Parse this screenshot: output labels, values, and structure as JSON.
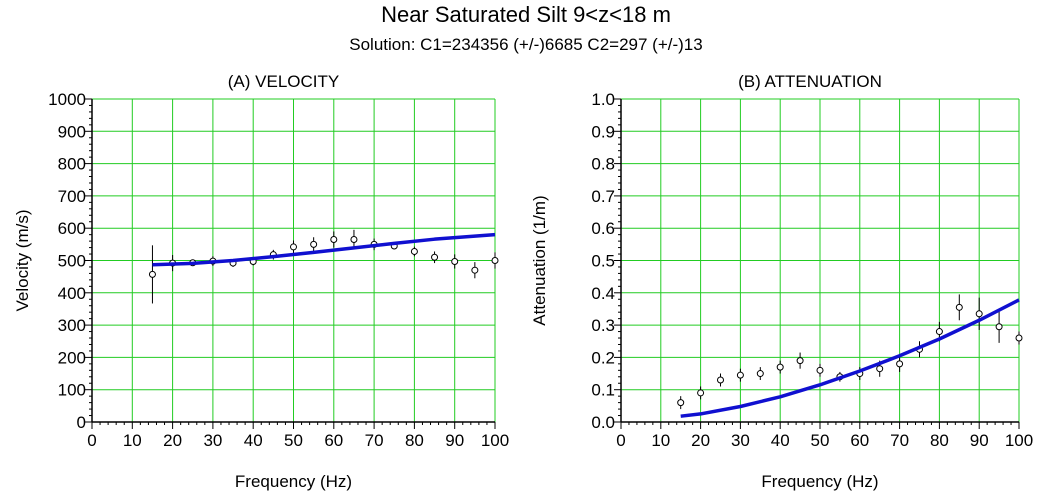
{
  "title": "Near Saturated Silt  9<z<18 m",
  "subtitle": "Solution:  C1=234356 (+/-)6685 C2=297 (+/-)13",
  "colors": {
    "grid": "#22cc22",
    "fit": "#1010d0",
    "data": "#000000"
  },
  "chart_data": [
    {
      "type": "scatter",
      "title": "(A) VELOCITY",
      "xlabel": "Frequency (Hz)",
      "ylabel": "Velocity (m/s)",
      "xlim": [
        0,
        100
      ],
      "ylim": [
        0,
        1000
      ],
      "xticks": [
        "0",
        "10",
        "20",
        "30",
        "40",
        "50",
        "60",
        "70",
        "80",
        "90",
        "100"
      ],
      "yticks": [
        "0",
        "100",
        "200",
        "300",
        "400",
        "500",
        "600",
        "700",
        "800",
        "900",
        "1000"
      ],
      "grid": true,
      "series": [
        {
          "kind": "points_with_error_bars",
          "x": [
            15,
            20,
            25,
            30,
            35,
            40,
            45,
            50,
            55,
            60,
            65,
            70,
            75,
            80,
            85,
            90,
            95,
            100
          ],
          "y": [
            457,
            492,
            493,
            498,
            492,
            497,
            518,
            542,
            550,
            565,
            565,
            550,
            545,
            528,
            510,
            497,
            470,
            500
          ],
          "err": [
            90,
            25,
            10,
            15,
            12,
            12,
            15,
            20,
            22,
            25,
            30,
            18,
            10,
            15,
            18,
            22,
            25,
            25
          ]
        },
        {
          "kind": "fit_line",
          "x": [
            15,
            25,
            35,
            45,
            55,
            65,
            75,
            85,
            100
          ],
          "y": [
            487,
            491,
            500,
            512,
            525,
            539,
            553,
            566,
            580
          ]
        }
      ]
    },
    {
      "type": "scatter",
      "title": "(B) ATTENUATION",
      "xlabel": "Frequency (Hz)",
      "ylabel": "Attenuation (1/m)",
      "xlim": [
        0,
        100
      ],
      "ylim": [
        0,
        1
      ],
      "xticks": [
        "0",
        "10",
        "20",
        "30",
        "40",
        "50",
        "60",
        "70",
        "80",
        "90",
        "100"
      ],
      "yticks": [
        "0.0",
        "0.1",
        "0.2",
        "0.3",
        "0.4",
        "0.5",
        "0.6",
        "0.7",
        "0.8",
        "0.9",
        "1.0"
      ],
      "grid": true,
      "series": [
        {
          "kind": "points_with_error_bars",
          "x": [
            15,
            20,
            25,
            30,
            35,
            40,
            45,
            50,
            55,
            60,
            65,
            70,
            75,
            80,
            85,
            90,
            95,
            100
          ],
          "y": [
            0.06,
            0.09,
            0.13,
            0.145,
            0.15,
            0.17,
            0.19,
            0.16,
            0.14,
            0.15,
            0.165,
            0.18,
            0.225,
            0.28,
            0.355,
            0.335,
            0.295,
            0.26
          ],
          "err": [
            0.02,
            0.02,
            0.02,
            0.02,
            0.02,
            0.02,
            0.025,
            0.02,
            0.015,
            0.02,
            0.025,
            0.025,
            0.025,
            0.03,
            0.04,
            0.05,
            0.05,
            0.02
          ]
        },
        {
          "kind": "fit_line",
          "x": [
            15,
            20,
            30,
            40,
            50,
            60,
            70,
            80,
            90,
            100
          ],
          "y": [
            0.018,
            0.025,
            0.048,
            0.078,
            0.115,
            0.158,
            0.205,
            0.257,
            0.315,
            0.378
          ]
        }
      ]
    }
  ]
}
